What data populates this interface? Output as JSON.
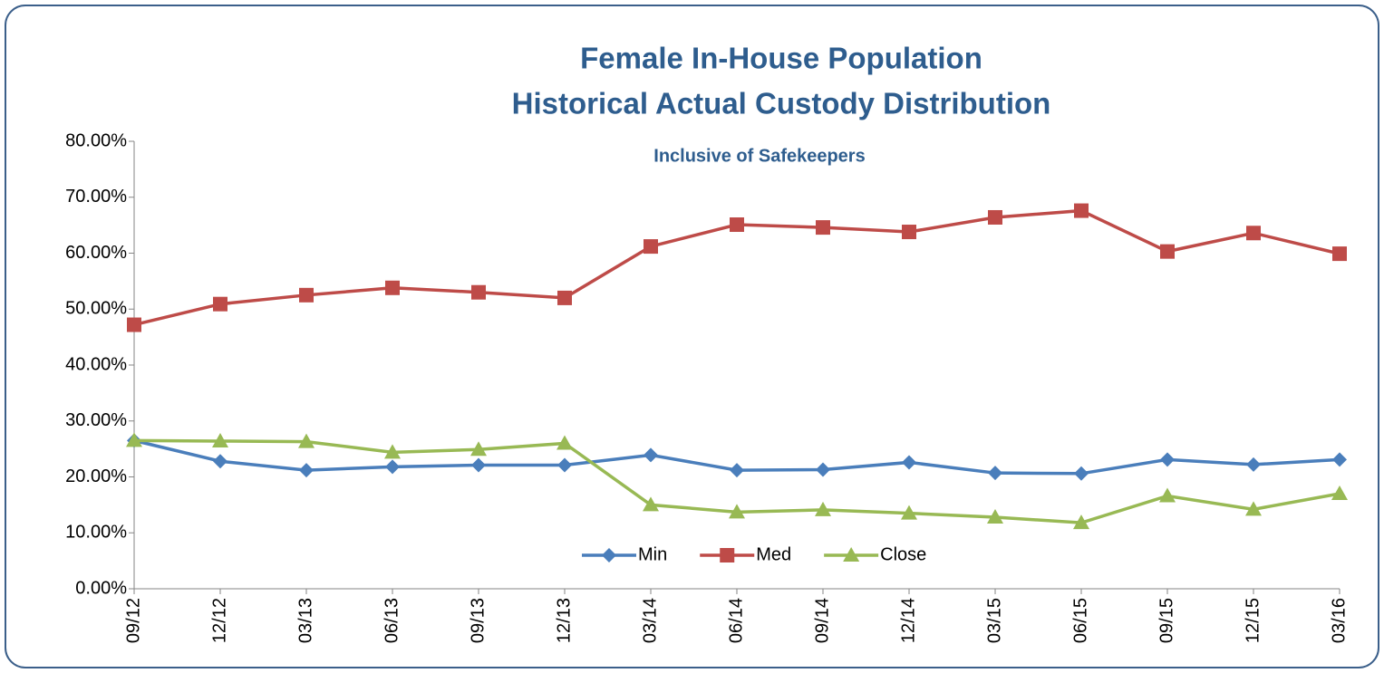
{
  "chart_data": {
    "type": "line",
    "title": [
      "Female In-House Population",
      "Historical Actual Custody Distribution"
    ],
    "subtitle": "Inclusive of Safekeepers",
    "categories": [
      "09/12",
      "12/12",
      "03/13",
      "06/13",
      "09/13",
      "12/13",
      "03/14",
      "06/14",
      "09/14",
      "12/14",
      "03/15",
      "06/15",
      "09/15",
      "12/15",
      "03/16"
    ],
    "series": [
      {
        "name": "Min",
        "color": "#4a7ebb",
        "marker": "diamond",
        "values": [
          26.5,
          22.8,
          21.2,
          21.8,
          22.1,
          22.1,
          23.9,
          21.2,
          21.3,
          22.6,
          20.7,
          20.6,
          23.1,
          22.2,
          23.1
        ]
      },
      {
        "name": "Med",
        "color": "#be4b48",
        "marker": "square",
        "values": [
          47.2,
          50.9,
          52.5,
          53.8,
          53.0,
          52.0,
          61.2,
          65.1,
          64.6,
          63.8,
          66.4,
          67.6,
          60.3,
          63.6,
          59.9
        ]
      },
      {
        "name": "Close",
        "color": "#98b954",
        "marker": "triangle",
        "values": [
          26.5,
          26.4,
          26.3,
          24.4,
          24.9,
          26.0,
          15.0,
          13.7,
          14.1,
          13.5,
          12.8,
          11.8,
          16.6,
          14.2,
          17.0
        ]
      }
    ],
    "ylim": [
      0,
      80
    ],
    "yticks": [
      {
        "value": 0,
        "label": "0.00%"
      },
      {
        "value": 10,
        "label": "10.00%"
      },
      {
        "value": 20,
        "label": "20.00%"
      },
      {
        "value": 30,
        "label": "30.00%"
      },
      {
        "value": 40,
        "label": "40.00%"
      },
      {
        "value": 50,
        "label": "50.00%"
      },
      {
        "value": 60,
        "label": "60.00%"
      },
      {
        "value": 70,
        "label": "70.00%"
      },
      {
        "value": 80,
        "label": "80.00%"
      }
    ],
    "grid": false,
    "legend": "bottom"
  }
}
